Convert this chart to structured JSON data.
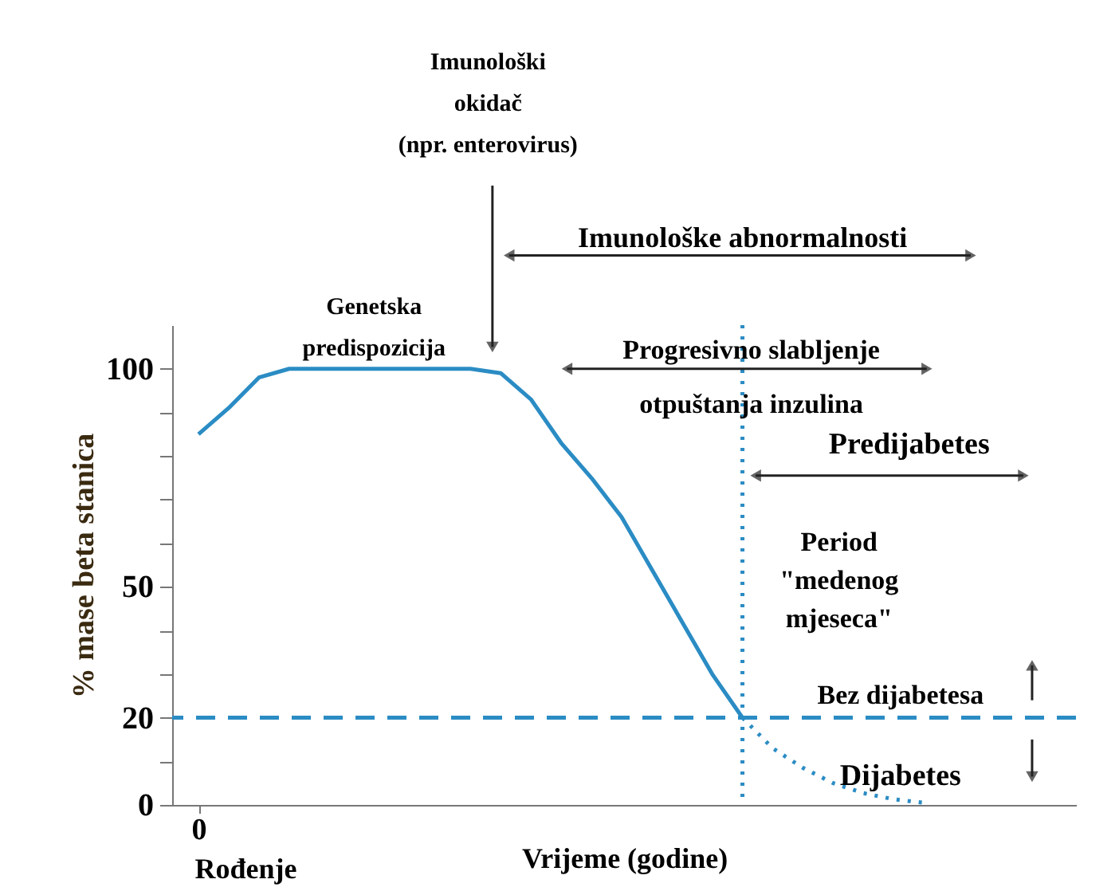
{
  "chart_data": {
    "type": "line",
    "xlabel": "Vrijeme (godine)",
    "ylabel": "% mase beta stanica",
    "categories": [
      "0",
      null,
      null,
      null,
      null,
      null,
      null,
      null,
      null,
      null,
      null,
      null,
      null,
      null,
      null,
      null,
      null,
      null,
      null,
      null,
      null,
      null,
      null,
      null,
      null
    ],
    "ylim": [
      0,
      110
    ],
    "yticks": [
      0,
      {
        "value": 10,
        "label": null
      },
      20,
      {
        "value": 30,
        "label": null
      },
      {
        "value": 40,
        "label": null
      },
      50,
      {
        "value": 60,
        "label": null
      },
      {
        "value": 70,
        "label": null
      },
      {
        "value": 80,
        "label": null
      },
      {
        "value": 90,
        "label": null
      },
      100
    ],
    "series": [
      {
        "color": "#2b8cc4",
        "line_style": "solid",
        "values": [
          85,
          91,
          98,
          100,
          100,
          100,
          100,
          100,
          100,
          100,
          99,
          93,
          83,
          75,
          66,
          54,
          42,
          30,
          20,
          null,
          null,
          null,
          null,
          null,
          null
        ]
      },
      {
        "color": "#2b8cc4",
        "line_style": "dotted",
        "values": [
          null,
          null,
          null,
          null,
          null,
          null,
          null,
          null,
          null,
          null,
          null,
          null,
          null,
          null,
          null,
          null,
          null,
          null,
          20,
          13,
          8.5,
          5,
          2.7,
          1.3,
          0.5
        ]
      }
    ],
    "ref_lines": [
      {
        "axis": "y",
        "value": 20,
        "color": "#2b8cc4",
        "line_style": "dashed"
      }
    ],
    "annotations": [
      "Imunološki\nokidač\n(npr. enterovirus)",
      "Imunološke abnormalnosti",
      "Genetska\npredispozicija",
      "Progresivno slabljenje\notpuštanja inzulina",
      "Predijabetes",
      "Period\n\"medenog\nmjeseca\"",
      "Bez dijabetesa",
      "Dijabetes",
      "Rođenje"
    ],
    "grid": false,
    "marker": "none"
  }
}
